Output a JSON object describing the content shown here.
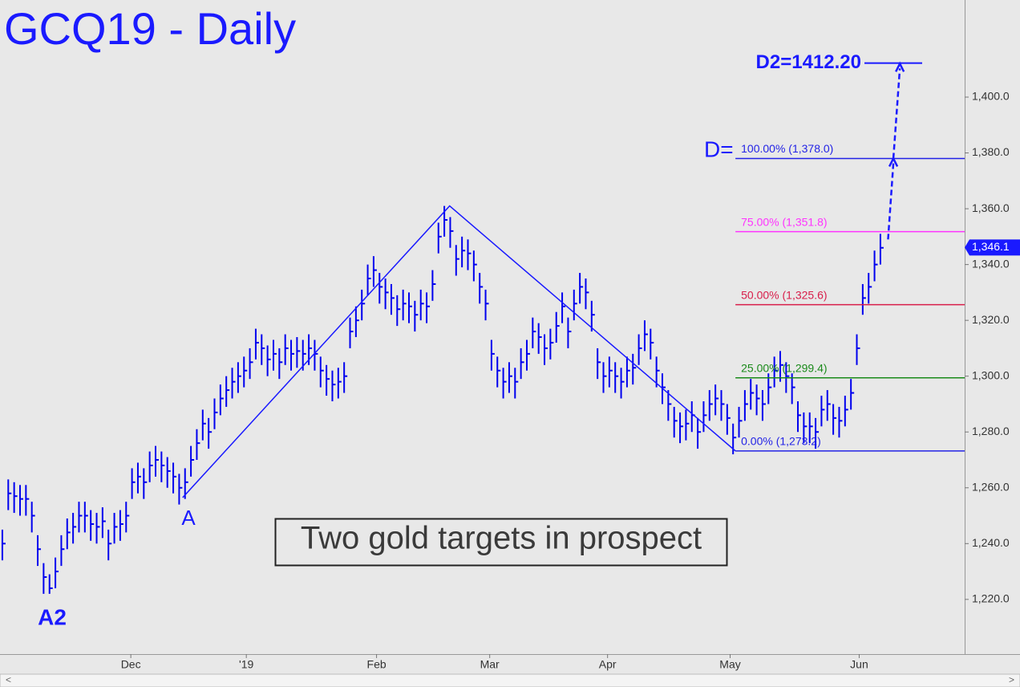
{
  "chart_data": {
    "type": "ohlc",
    "title": "GCQ19 - Daily",
    "bar_color": "#0000ee",
    "ylim": [
      1200.4,
      1434.8
    ],
    "yticks": [
      {
        "value": 1220,
        "label": "1,220.0"
      },
      {
        "value": 1240,
        "label": "1,240.0"
      },
      {
        "value": 1260,
        "label": "1,260.0"
      },
      {
        "value": 1280,
        "label": "1,280.0"
      },
      {
        "value": 1300,
        "label": "1,300.0"
      },
      {
        "value": 1320,
        "label": "1,320.0"
      },
      {
        "value": 1340,
        "label": "1,340.0"
      },
      {
        "value": 1360,
        "label": "1,360.0"
      },
      {
        "value": 1380,
        "label": "1,380.0"
      },
      {
        "value": 1400,
        "label": "1,400.0"
      }
    ],
    "xlim": [
      -0.4,
      163.3
    ],
    "xticks": [
      {
        "value": 21.8,
        "label": "Dec"
      },
      {
        "value": 41.4,
        "label": "'19"
      },
      {
        "value": 63.5,
        "label": "Feb"
      },
      {
        "value": 82.7,
        "label": "Mar"
      },
      {
        "value": 102.7,
        "label": "Apr"
      },
      {
        "value": 123.5,
        "label": "May"
      },
      {
        "value": 145.4,
        "label": "Jun"
      }
    ],
    "high": [
      1245,
      1263,
      1262,
      1261,
      1261,
      1255,
      1243,
      1233,
      1229,
      1235,
      1243,
      1249,
      1251,
      1255,
      1255,
      1252,
      1251,
      1253,
      1245,
      1251,
      1252,
      1255,
      1267,
      1269,
      1267,
      1273,
      1275,
      1273,
      1271,
      1269,
      1265,
      1267,
      1275,
      1281,
      1288,
      1285,
      1292,
      1297,
      1300,
      1303,
      1305,
      1307,
      1310,
      1317,
      1315,
      1311,
      1313,
      1310,
      1315,
      1313,
      1314,
      1313,
      1315,
      1313,
      1307,
      1304,
      1302,
      1303,
      1305,
      1321,
      1325,
      1331,
      1340,
      1343,
      1337,
      1335,
      1333,
      1329,
      1331,
      1330,
      1327,
      1331,
      1330,
      1338,
      1355,
      1361,
      1357,
      1347,
      1350,
      1349,
      1345,
      1337,
      1331,
      1313,
      1307,
      1303,
      1305,
      1303,
      1310,
      1313,
      1321,
      1319,
      1315,
      1317,
      1323,
      1330,
      1321,
      1331,
      1337,
      1335,
      1327,
      1310,
      1305,
      1307,
      1305,
      1303,
      1307,
      1308,
      1315,
      1320,
      1317,
      1307,
      1301,
      1295,
      1289,
      1287,
      1288,
      1291,
      1285,
      1291,
      1295,
      1297,
      1295,
      1290,
      1283,
      1289,
      1295,
      1299,
      1297,
      1295,
      1301,
      1307,
      1309,
      1305,
      1301,
      1291,
      1287,
      1287,
      1285,
      1293,
      1295,
      1290,
      1289,
      1293,
      1299,
      1315,
      1333,
      1337,
      1345,
      1351
    ],
    "low": [
      1234,
      1252,
      1251,
      1250,
      1250,
      1244,
      1232,
      1222,
      1222,
      1224,
      1232,
      1238,
      1240,
      1244,
      1244,
      1241,
      1240,
      1242,
      1234,
      1240,
      1241,
      1244,
      1256,
      1258,
      1256,
      1262,
      1264,
      1262,
      1260,
      1258,
      1254,
      1256,
      1264,
      1270,
      1277,
      1274,
      1281,
      1286,
      1289,
      1292,
      1294,
      1296,
      1299,
      1306,
      1304,
      1300,
      1302,
      1299,
      1304,
      1302,
      1303,
      1302,
      1304,
      1302,
      1296,
      1293,
      1291,
      1292,
      1294,
      1310,
      1314,
      1320,
      1329,
      1332,
      1326,
      1324,
      1322,
      1318,
      1320,
      1319,
      1316,
      1320,
      1319,
      1327,
      1344,
      1350,
      1346,
      1336,
      1339,
      1338,
      1334,
      1326,
      1320,
      1302,
      1296,
      1292,
      1294,
      1292,
      1299,
      1302,
      1310,
      1308,
      1304,
      1306,
      1312,
      1319,
      1310,
      1320,
      1326,
      1324,
      1316,
      1299,
      1294,
      1296,
      1294,
      1292,
      1296,
      1297,
      1304,
      1309,
      1306,
      1296,
      1290,
      1284,
      1278,
      1276,
      1277,
      1280,
      1274,
      1280,
      1284,
      1286,
      1284,
      1279,
      1272,
      1278,
      1284,
      1288,
      1286,
      1284,
      1290,
      1296,
      1298,
      1294,
      1290,
      1280,
      1276,
      1276,
      1274,
      1282,
      1284,
      1279,
      1278,
      1282,
      1288,
      1304,
      1322,
      1326,
      1334,
      1340
    ],
    "close": [
      1240,
      1258,
      1257,
      1256,
      1256,
      1250,
      1238,
      1228,
      1224,
      1230,
      1238,
      1244,
      1246,
      1250,
      1250,
      1247,
      1246,
      1248,
      1240,
      1246,
      1247,
      1250,
      1262,
      1264,
      1262,
      1268,
      1270,
      1268,
      1266,
      1264,
      1260,
      1262,
      1270,
      1276,
      1283,
      1280,
      1287,
      1292,
      1295,
      1298,
      1300,
      1302,
      1305,
      1312,
      1310,
      1306,
      1308,
      1305,
      1310,
      1308,
      1309,
      1308,
      1310,
      1308,
      1302,
      1299,
      1297,
      1298,
      1300,
      1316,
      1320,
      1326,
      1335,
      1338,
      1332,
      1330,
      1328,
      1324,
      1326,
      1325,
      1322,
      1326,
      1325,
      1333,
      1350,
      1356,
      1352,
      1342,
      1345,
      1344,
      1340,
      1332,
      1326,
      1308,
      1302,
      1298,
      1300,
      1298,
      1305,
      1308,
      1316,
      1314,
      1310,
      1312,
      1318,
      1325,
      1316,
      1326,
      1332,
      1330,
      1322,
      1305,
      1300,
      1302,
      1300,
      1298,
      1302,
      1303,
      1310,
      1315,
      1312,
      1302,
      1296,
      1290,
      1284,
      1282,
      1283,
      1286,
      1280,
      1286,
      1290,
      1292,
      1290,
      1285,
      1278,
      1284,
      1290,
      1294,
      1292,
      1290,
      1296,
      1302,
      1304,
      1300,
      1296,
      1286,
      1282,
      1282,
      1280,
      1288,
      1290,
      1285,
      1284,
      1288,
      1294,
      1310,
      1328,
      1332,
      1340,
      1346
    ],
    "pattern_line": {
      "color": "#1a1aff",
      "x": [
        30.6,
        75.9,
        124.4
      ],
      "y": [
        1256.5,
        1361,
        1273.2
      ]
    },
    "levels": [
      {
        "label": "100.00% (1,378.0)",
        "value": 1378,
        "color": "#2323e6"
      },
      {
        "label": "75.00% (1,351.8)",
        "value": 1351.8,
        "color": "#ff33ff"
      },
      {
        "label": "50.00% (1,325.6)",
        "value": 1325.6,
        "color": "#d81e4a"
      },
      {
        "label": "25.00% (1,299.4)",
        "value": 1299.4,
        "color": "#1a8a1a"
      },
      {
        "label": "0.00% (1,273.2)",
        "value": 1273.2,
        "color": "#2323e6"
      }
    ],
    "projection": {
      "color": "#1a1aff",
      "x": [
        150.3,
        151.2,
        152.3
      ],
      "y": [
        1349,
        1378,
        1412
      ]
    },
    "d2": {
      "label": "D2=1412.20",
      "value": 1412.2
    },
    "last_price": {
      "label": "1,346.1",
      "value": 1346.1
    },
    "annotations": {
      "d": "D=",
      "a": "A",
      "a2": "A2",
      "caption": "Two gold targets in prospect"
    }
  }
}
